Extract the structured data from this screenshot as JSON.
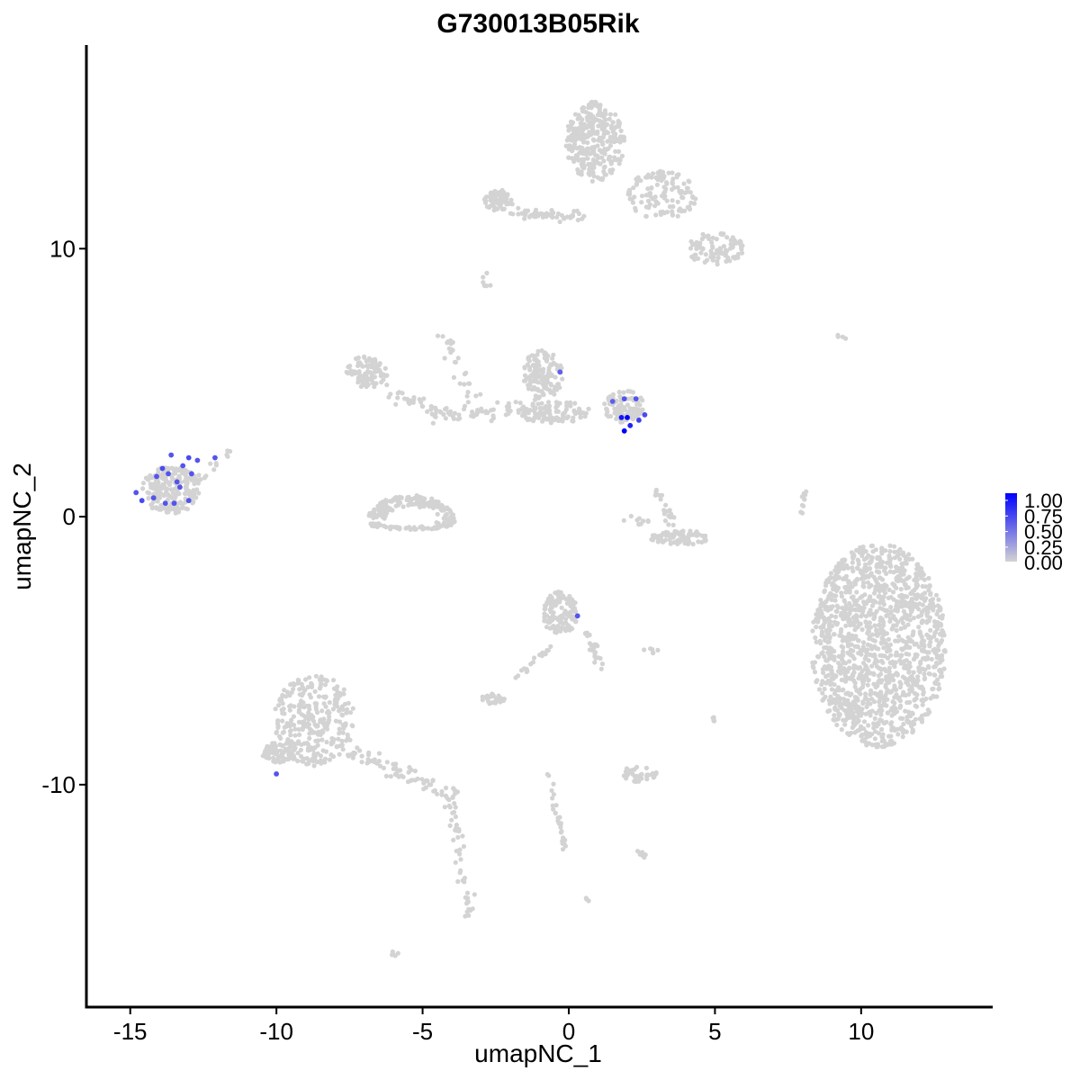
{
  "chart_data": {
    "type": "scatter",
    "title": "G730013B05Rik",
    "xlabel": "umapNC_1",
    "ylabel": "umapNC_2",
    "xlim": [
      -16.5,
      14.5
    ],
    "ylim": [
      -18.3,
      17.6
    ],
    "x_ticks": [
      -15,
      -10,
      -5,
      0,
      5,
      10
    ],
    "x_tick_labels": [
      "-15",
      "-10",
      "-5",
      "0",
      "5",
      "10"
    ],
    "y_ticks": [
      -10,
      0,
      10
    ],
    "y_tick_labels": [
      "-10",
      "0",
      "10"
    ],
    "grid": false,
    "legend_position": "right",
    "colors": {
      "low": "#d3d3d3",
      "high": "#0000ff"
    },
    "colorbar": {
      "min": 0,
      "max": 1,
      "ticks": [
        "1.00",
        "0.75",
        "0.50",
        "0.25",
        "0.00"
      ]
    },
    "clusters": [
      {
        "shape": "blob",
        "cx": 10.6,
        "cy": -4.8,
        "rx": 2.3,
        "ry": 3.8,
        "n": 1400
      },
      {
        "shape": "blob",
        "cx": 0.9,
        "cy": 14.0,
        "rx": 1.0,
        "ry": 1.5,
        "n": 300
      },
      {
        "shape": "blob",
        "cx": 3.2,
        "cy": 12.0,
        "rx": 1.2,
        "ry": 0.9,
        "n": 120
      },
      {
        "shape": "blob",
        "cx": 5.0,
        "cy": 10.0,
        "rx": 1.0,
        "ry": 0.6,
        "n": 90
      },
      {
        "shape": "blob",
        "cx": -2.4,
        "cy": 11.8,
        "rx": 0.5,
        "ry": 0.4,
        "n": 70
      },
      {
        "shape": "line",
        "x1": -2.0,
        "y1": 11.3,
        "x2": 0.6,
        "y2": 11.2,
        "n": 50,
        "w": 0.2
      },
      {
        "shape": "blob",
        "cx": -0.9,
        "cy": 5.3,
        "rx": 0.7,
        "ry": 0.9,
        "n": 130
      },
      {
        "shape": "blob",
        "cx": 1.9,
        "cy": 4.1,
        "rx": 0.7,
        "ry": 0.6,
        "n": 100
      },
      {
        "shape": "blob",
        "cx": -0.5,
        "cy": 3.9,
        "rx": 1.3,
        "ry": 0.4,
        "n": 110
      },
      {
        "shape": "blob",
        "cx": -6.9,
        "cy": 5.4,
        "rx": 0.7,
        "ry": 0.6,
        "n": 90
      },
      {
        "shape": "line",
        "x1": -6.3,
        "y1": 4.7,
        "x2": -4.2,
        "y2": 3.8,
        "n": 35,
        "w": 0.35
      },
      {
        "shape": "line",
        "x1": -4.8,
        "y1": 3.6,
        "x2": -1.2,
        "y2": 4.1,
        "n": 45,
        "w": 0.3
      },
      {
        "shape": "line",
        "x1": -4.3,
        "y1": 6.8,
        "x2": -3.0,
        "y2": 3.8,
        "n": 30,
        "w": 0.25
      },
      {
        "shape": "ring",
        "cx": -5.4,
        "cy": -0.2,
        "rx": 1.5,
        "ry": 1.0,
        "n": 220
      },
      {
        "shape": "blob",
        "cx": -13.6,
        "cy": 1.0,
        "rx": 1.0,
        "ry": 0.9,
        "n": 220
      },
      {
        "shape": "line",
        "x1": -12.6,
        "y1": 1.4,
        "x2": -11.3,
        "y2": 2.7,
        "n": 12,
        "w": 0.2
      },
      {
        "shape": "blob",
        "cx": 3.8,
        "cy": -0.8,
        "rx": 1.0,
        "ry": 0.3,
        "n": 80
      },
      {
        "shape": "line",
        "x1": 3.0,
        "y1": 1.3,
        "x2": 3.5,
        "y2": -0.3,
        "n": 20,
        "w": 0.2
      },
      {
        "shape": "line",
        "x1": 2.8,
        "y1": -0.2,
        "x2": 1.9,
        "y2": -0.1,
        "n": 10,
        "w": 0.15
      },
      {
        "shape": "line",
        "x1": 8.1,
        "y1": 0.9,
        "x2": 7.8,
        "y2": -0.5,
        "n": 10,
        "w": 0.12
      },
      {
        "shape": "blob",
        "cx": -0.3,
        "cy": -3.6,
        "rx": 0.6,
        "ry": 0.8,
        "n": 130
      },
      {
        "shape": "line",
        "x1": 0.6,
        "y1": -4.3,
        "x2": 1.1,
        "y2": -5.6,
        "n": 25,
        "w": 0.15
      },
      {
        "shape": "line",
        "x1": -0.6,
        "y1": -4.8,
        "x2": -1.7,
        "y2": -5.9,
        "n": 20,
        "w": 0.15
      },
      {
        "shape": "blob",
        "cx": -8.7,
        "cy": -7.6,
        "rx": 1.4,
        "ry": 1.7,
        "n": 300
      },
      {
        "shape": "blob",
        "cx": -9.9,
        "cy": -8.8,
        "rx": 0.6,
        "ry": 0.4,
        "n": 60
      },
      {
        "shape": "line",
        "x1": -7.6,
        "y1": -8.7,
        "x2": -3.9,
        "y2": -10.4,
        "n": 80,
        "w": 0.3
      },
      {
        "shape": "line",
        "x1": -4.0,
        "y1": -10.6,
        "x2": -3.4,
        "y2": -15.0,
        "n": 45,
        "w": 0.2
      },
      {
        "shape": "blob",
        "cx": -2.6,
        "cy": -6.8,
        "rx": 0.4,
        "ry": 0.2,
        "n": 25
      },
      {
        "shape": "line",
        "x1": -0.8,
        "y1": -9.3,
        "x2": -0.1,
        "y2": -12.4,
        "n": 28,
        "w": 0.12
      },
      {
        "shape": "blob",
        "cx": 2.4,
        "cy": -9.6,
        "rx": 0.6,
        "ry": 0.3,
        "n": 40
      },
      {
        "shape": "line",
        "x1": 2.3,
        "y1": -12.4,
        "x2": 2.7,
        "y2": -12.8,
        "n": 10,
        "w": 0.1
      },
      {
        "shape": "blob",
        "cx": -6.0,
        "cy": -16.3,
        "rx": 0.2,
        "ry": 0.1,
        "n": 6
      },
      {
        "shape": "blob",
        "cx": 0.6,
        "cy": -14.3,
        "rx": 0.1,
        "ry": 0.1,
        "n": 4
      },
      {
        "shape": "blob",
        "cx": 2.8,
        "cy": -5.0,
        "rx": 0.3,
        "ry": 0.1,
        "n": 6
      },
      {
        "shape": "blob",
        "cx": 5.0,
        "cy": -7.6,
        "rx": 0.1,
        "ry": 0.5,
        "n": 5
      },
      {
        "shape": "blob",
        "cx": -2.8,
        "cy": 8.8,
        "rx": 0.2,
        "ry": 0.3,
        "n": 7
      },
      {
        "shape": "blob",
        "cx": 9.3,
        "cy": 6.7,
        "rx": 0.2,
        "ry": 0.1,
        "n": 4
      }
    ],
    "expressing_points": [
      {
        "x": -14.8,
        "y": 0.9,
        "v": 0.6
      },
      {
        "x": -14.6,
        "y": 0.6,
        "v": 0.65
      },
      {
        "x": -14.2,
        "y": 0.7,
        "v": 0.6
      },
      {
        "x": -14.1,
        "y": 1.5,
        "v": 0.6
      },
      {
        "x": -13.9,
        "y": 1.8,
        "v": 0.65
      },
      {
        "x": -13.7,
        "y": 1.6,
        "v": 0.6
      },
      {
        "x": -13.6,
        "y": 2.3,
        "v": 0.6
      },
      {
        "x": -13.4,
        "y": 1.3,
        "v": 0.6
      },
      {
        "x": -13.3,
        "y": 1.1,
        "v": 0.6
      },
      {
        "x": -13.2,
        "y": 1.9,
        "v": 0.6
      },
      {
        "x": -13.0,
        "y": 2.2,
        "v": 0.65
      },
      {
        "x": -12.9,
        "y": 1.6,
        "v": 0.6
      },
      {
        "x": -12.7,
        "y": 2.1,
        "v": 0.6
      },
      {
        "x": -13.8,
        "y": 0.5,
        "v": 0.6
      },
      {
        "x": -13.5,
        "y": 0.5,
        "v": 0.6
      },
      {
        "x": -13.0,
        "y": 0.6,
        "v": 0.6
      },
      {
        "x": -12.1,
        "y": 2.2,
        "v": 0.6
      },
      {
        "x": -0.3,
        "y": 5.4,
        "v": 0.55
      },
      {
        "x": 1.5,
        "y": 4.3,
        "v": 0.55
      },
      {
        "x": 1.9,
        "y": 4.4,
        "v": 0.6
      },
      {
        "x": 2.3,
        "y": 4.4,
        "v": 0.6
      },
      {
        "x": 2.6,
        "y": 3.8,
        "v": 0.65
      },
      {
        "x": 1.8,
        "y": 3.7,
        "v": 0.9
      },
      {
        "x": 2.0,
        "y": 3.7,
        "v": 1.0
      },
      {
        "x": 2.1,
        "y": 3.4,
        "v": 0.85
      },
      {
        "x": 2.4,
        "y": 3.6,
        "v": 0.7
      },
      {
        "x": 1.9,
        "y": 3.2,
        "v": 1.0
      },
      {
        "x": 0.3,
        "y": -3.7,
        "v": 0.6
      },
      {
        "x": -10.0,
        "y": -9.6,
        "v": 0.6
      }
    ]
  }
}
